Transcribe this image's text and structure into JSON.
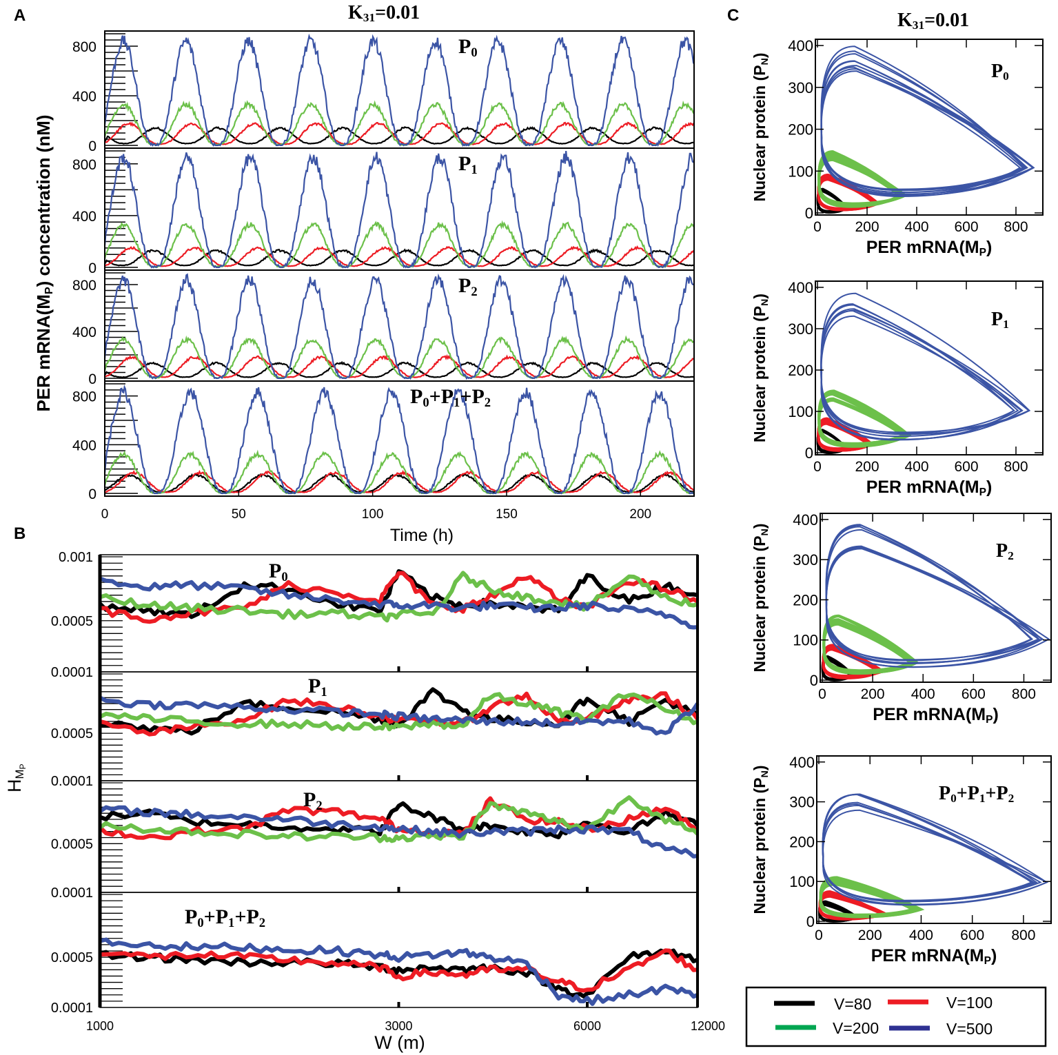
{
  "figure": {
    "panel_labels": [
      "A",
      "B",
      "C"
    ],
    "legend": [
      {
        "label": "V=80",
        "color": "#000000"
      },
      {
        "label": "V=100",
        "color": "#ed1c24"
      },
      {
        "label": "V=200",
        "color": "#00a651"
      },
      {
        "label": "V=500",
        "color": "#2e3192"
      }
    ]
  },
  "colors": {
    "V=80": "#000000",
    "V=100": "#ed1c24",
    "V=200": "#6cc04a",
    "V=500": "#3b54a5"
  },
  "chart_data": [
    {
      "panel": "A",
      "type": "line",
      "title": {
        "base": "K",
        "sub": "31",
        "rest": "=0.01"
      },
      "xlabel": "Time (h)",
      "ylabel": {
        "pre": "PER mRNA(M",
        "sub": "P",
        "post": ") concentration (nM)"
      },
      "xlim": [
        0,
        220
      ],
      "xticks": [
        0,
        50,
        100,
        150,
        200
      ],
      "ylim": [
        -15,
        900
      ],
      "yticks": [
        0,
        400,
        800
      ],
      "subplots": [
        {
          "label": [
            [
              "P",
              "0"
            ]
          ],
          "series": [
            {
              "name": "V=80",
              "period_h": 23.3,
              "first_peak_h": 19,
              "peak": 140,
              "trough": 15
            },
            {
              "name": "V=100",
              "period_h": 23.3,
              "first_peak_h": 9,
              "peak": 175,
              "trough": 10
            },
            {
              "name": "V=200",
              "period_h": 23.3,
              "first_peak_h": 7,
              "peak": 330,
              "trough": 5
            },
            {
              "name": "V=500",
              "period_h": 23.3,
              "first_peak_h": 7,
              "peak": 840,
              "trough": 0
            }
          ]
        },
        {
          "label": [
            [
              "P",
              "1"
            ]
          ],
          "series": [
            {
              "name": "V=80",
              "period_h": 23.6,
              "first_peak_h": 18,
              "peak": 130,
              "trough": 15
            },
            {
              "name": "V=100",
              "period_h": 23.6,
              "first_peak_h": 10,
              "peak": 150,
              "trough": 10
            },
            {
              "name": "V=200",
              "period_h": 23.6,
              "first_peak_h": 7,
              "peak": 330,
              "trough": 5
            },
            {
              "name": "V=500",
              "period_h": 23.6,
              "first_peak_h": 7,
              "peak": 850,
              "trough": 0
            }
          ]
        },
        {
          "label": [
            [
              "P",
              "2"
            ]
          ],
          "series": [
            {
              "name": "V=80",
              "period_h": 23.5,
              "first_peak_h": 18,
              "peak": 130,
              "trough": 10
            },
            {
              "name": "V=100",
              "period_h": 23.5,
              "first_peak_h": 10,
              "peak": 180,
              "trough": 10
            },
            {
              "name": "V=200",
              "period_h": 23.5,
              "first_peak_h": 7,
              "peak": 330,
              "trough": 5
            },
            {
              "name": "V=500",
              "period_h": 23.5,
              "first_peak_h": 7,
              "peak": 840,
              "trough": 0
            }
          ]
        },
        {
          "label": [
            [
              "P",
              "0"
            ],
            [
              "+P",
              "1"
            ],
            [
              "+P",
              "2"
            ]
          ],
          "series": [
            {
              "name": "V=80",
              "period_h": 25,
              "first_peak_h": 9,
              "peak": 150,
              "trough": 10
            },
            {
              "name": "V=100",
              "period_h": 25,
              "first_peak_h": 11,
              "peak": 170,
              "trough": 10
            },
            {
              "name": "V=200",
              "period_h": 25,
              "first_peak_h": 7,
              "peak": 320,
              "trough": 0
            },
            {
              "name": "V=500",
              "period_h": 25,
              "first_peak_h": 7,
              "peak": 830,
              "trough": 0
            }
          ]
        }
      ]
    },
    {
      "panel": "B",
      "type": "line",
      "xlabel": "W (m)",
      "ylabel": {
        "base": "H",
        "sub": "M",
        "subsub": "P"
      },
      "xscale": "log",
      "xlim": [
        1000,
        9000
      ],
      "xticks": [
        1000,
        3000,
        6000,
        12000
      ],
      "ylim": [
        0.0001,
        0.001
      ],
      "ytick_labels": [
        [
          "0.001",
          "0.0005",
          "0.0001"
        ],
        [
          "0.0005",
          "0.0001"
        ],
        [
          "0.0005",
          "0.0001"
        ],
        [
          "0.0005",
          "0.0001"
        ]
      ],
      "ytick_values": [
        [
          0.001,
          0.0005,
          0.0001
        ],
        [
          0.0005,
          0.0001
        ],
        [
          0.0005,
          0.0001
        ],
        [
          0.0005,
          0.0001
        ]
      ],
      "W": [
        1000,
        1200,
        1400,
        1700,
        2000,
        2400,
        2800,
        3000,
        3400,
        3800,
        4200,
        4800,
        5400,
        6000,
        7000,
        8000,
        9000
      ],
      "subplots": [
        {
          "label": [
            [
              "P",
              "0"
            ]
          ],
          "series": [
            {
              "name": "V=80",
              "H": [
                0.00062,
                0.00058,
                0.00054,
                0.00078,
                0.00075,
                0.00063,
                0.00058,
                0.00088,
                0.00068,
                0.00062,
                0.00064,
                0.0006,
                0.00058,
                0.00085,
                0.00065,
                0.00078,
                0.0007
              ]
            },
            {
              "name": "V=100",
              "H": [
                0.00058,
                0.00052,
                0.00056,
                0.0006,
                0.00078,
                0.00072,
                0.00066,
                0.00088,
                0.00062,
                0.0006,
                0.00068,
                0.00086,
                0.00066,
                0.0006,
                0.00082,
                0.00075,
                0.00065
              ]
            },
            {
              "name": "V=200",
              "H": [
                0.00068,
                0.00062,
                0.0006,
                0.00058,
                0.00055,
                0.00056,
                0.00052,
                0.00055,
                0.00055,
                0.00085,
                0.00075,
                0.00068,
                0.00065,
                0.0006,
                0.00085,
                0.00068,
                0.00063
              ]
            },
            {
              "name": "V=500",
              "H": [
                0.00082,
                0.00076,
                0.00078,
                0.00075,
                0.0007,
                0.00066,
                0.00063,
                0.00062,
                0.00062,
                0.0006,
                0.00062,
                0.0006,
                0.0006,
                0.00062,
                0.00058,
                0.00055,
                0.00045
              ]
            }
          ]
        },
        {
          "label": [
            [
              "P",
              "1"
            ]
          ],
          "series": [
            {
              "name": "V=80",
              "H": [
                0.0006,
                0.00054,
                0.00052,
                0.00075,
                0.00072,
                0.00068,
                0.00062,
                0.00058,
                0.00085,
                0.0007,
                0.00062,
                0.0006,
                0.00058,
                0.0008,
                0.0006,
                0.00078,
                0.00065
              ]
            },
            {
              "name": "V=100",
              "H": [
                0.00058,
                0.0005,
                0.00055,
                0.00062,
                0.00078,
                0.00072,
                0.00065,
                0.0006,
                0.0006,
                0.00058,
                0.00072,
                0.00082,
                0.0006,
                0.00062,
                0.00078,
                0.00082,
                0.00062
              ]
            },
            {
              "name": "V=200",
              "H": [
                0.00066,
                0.00062,
                0.0006,
                0.00058,
                0.00058,
                0.00056,
                0.00055,
                0.00055,
                0.00058,
                0.00056,
                0.00082,
                0.00075,
                0.00068,
                0.00062,
                0.00085,
                0.0007,
                0.0006
              ]
            },
            {
              "name": "V=500",
              "H": [
                0.00078,
                0.00074,
                0.00074,
                0.00072,
                0.0007,
                0.00068,
                0.00066,
                0.00064,
                0.00062,
                0.00061,
                0.0006,
                0.0006,
                0.00058,
                0.0006,
                0.0006,
                0.0005,
                0.00075
              ]
            }
          ]
        },
        {
          "label": [
            [
              "P",
              "2"
            ]
          ],
          "series": [
            {
              "name": "V=80",
              "H": [
                0.00072,
                0.00075,
                0.00068,
                0.00066,
                0.00064,
                0.00062,
                0.0006,
                0.00082,
                0.00072,
                0.00062,
                0.00065,
                0.0006,
                0.00058,
                0.00068,
                0.0006,
                0.00075,
                0.00065
              ]
            },
            {
              "name": "V=100",
              "H": [
                0.00062,
                0.00055,
                0.0006,
                0.00062,
                0.00078,
                0.00076,
                0.0007,
                0.00062,
                0.0006,
                0.00058,
                0.00085,
                0.0007,
                0.00068,
                0.00062,
                0.0007,
                0.0008,
                0.0006
              ]
            },
            {
              "name": "V=200",
              "H": [
                0.00066,
                0.00062,
                0.0006,
                0.00058,
                0.00056,
                0.00056,
                0.00055,
                0.00055,
                0.00056,
                0.00056,
                0.00082,
                0.00075,
                0.00068,
                0.00062,
                0.00088,
                0.0007,
                0.00058
              ]
            },
            {
              "name": "V=500",
              "H": [
                0.00078,
                0.00076,
                0.00074,
                0.00072,
                0.0007,
                0.00066,
                0.00064,
                0.00062,
                0.0006,
                0.00058,
                0.0006,
                0.0006,
                0.00062,
                0.00062,
                0.0006,
                0.00045,
                0.0004
              ]
            }
          ]
        },
        {
          "label": [
            [
              "P",
              "0"
            ],
            [
              "+P",
              "1"
            ],
            [
              "+P",
              "2"
            ]
          ],
          "series": [
            {
              "name": "V=80",
              "H": [
                0.00052,
                0.0005,
                0.00048,
                0.00046,
                0.00046,
                0.00045,
                0.00042,
                0.0004,
                0.00042,
                0.0004,
                0.00042,
                0.00038,
                0.00025,
                0.0002,
                0.0005,
                0.00055,
                0.00048
              ]
            },
            {
              "name": "V=100",
              "H": [
                0.00055,
                0.0005,
                0.00052,
                0.0005,
                0.00048,
                0.00045,
                0.00042,
                0.00035,
                0.00038,
                0.00036,
                0.0004,
                0.0004,
                0.0003,
                0.00025,
                0.0004,
                0.00055,
                0.0004
              ]
            },
            {
              "name": "V=500",
              "H": [
                0.00062,
                0.0006,
                0.00058,
                0.00058,
                0.00056,
                0.00055,
                0.00052,
                0.0005,
                0.00052,
                0.00054,
                0.0005,
                0.00045,
                0.0002,
                0.00015,
                0.0002,
                0.00025,
                0.0002
              ]
            }
          ]
        }
      ]
    },
    {
      "panel": "C",
      "type": "line",
      "title": {
        "base": "K",
        "sub": "31",
        "rest": "=0.01"
      },
      "xlabel": {
        "pre": "PER mRNA(M",
        "sub": "P",
        "post": ")"
      },
      "ylabel": {
        "pre": "Nuclear protein (P",
        "sub": "N",
        "post": ")"
      },
      "xlim": [
        0,
        900
      ],
      "xticks": [
        0,
        200,
        400,
        600,
        800
      ],
      "ylim": [
        0,
        410
      ],
      "yticks": [
        0,
        100,
        200,
        300,
        400
      ],
      "subplots": [
        {
          "label": [
            [
              "P",
              "0"
            ]
          ],
          "series": [
            {
              "name": "V=80",
              "mrna_range": [
                0,
                120
              ],
              "protein_range": [
                0,
                60
              ],
              "loops": 4
            },
            {
              "name": "V=100",
              "mrna_range": [
                0,
                250
              ],
              "protein_range": [
                5,
                95
              ],
              "loops": 8
            },
            {
              "name": "V=200",
              "mrna_range": [
                0,
                360
              ],
              "protein_range": [
                15,
                150
              ],
              "loops": 10
            },
            {
              "name": "V=500",
              "mrna_range": [
                0,
                880
              ],
              "protein_range": [
                35,
                400
              ],
              "loops": 9
            }
          ]
        },
        {
          "label": [
            [
              "P",
              "1"
            ]
          ],
          "series": [
            {
              "name": "V=80",
              "mrna_range": [
                0,
                120
              ],
              "protein_range": [
                0,
                55
              ],
              "loops": 4
            },
            {
              "name": "V=100",
              "mrna_range": [
                0,
                220
              ],
              "protein_range": [
                5,
                85
              ],
              "loops": 8
            },
            {
              "name": "V=200",
              "mrna_range": [
                0,
                370
              ],
              "protein_range": [
                15,
                150
              ],
              "loops": 10
            },
            {
              "name": "V=500",
              "mrna_range": [
                0,
                860
              ],
              "protein_range": [
                30,
                390
              ],
              "loops": 7
            }
          ]
        },
        {
          "label": [
            [
              "P",
              "2"
            ]
          ],
          "series": [
            {
              "name": "V=80",
              "mrna_range": [
                0,
                120
              ],
              "protein_range": [
                0,
                60
              ],
              "loops": 4
            },
            {
              "name": "V=100",
              "mrna_range": [
                0,
                240
              ],
              "protein_range": [
                5,
                90
              ],
              "loops": 8
            },
            {
              "name": "V=200",
              "mrna_range": [
                0,
                380
              ],
              "protein_range": [
                15,
                160
              ],
              "loops": 10
            },
            {
              "name": "V=500",
              "mrna_range": [
                0,
                900
              ],
              "protein_range": [
                30,
                390
              ],
              "loops": 8
            }
          ]
        },
        {
          "label": [
            [
              "P",
              "0"
            ],
            [
              "+P",
              "1"
            ],
            [
              "+P",
              "2"
            ]
          ],
          "series": [
            {
              "name": "V=80",
              "mrna_range": [
                0,
                150
              ],
              "protein_range": [
                0,
                50
              ],
              "loops": 4
            },
            {
              "name": "V=100",
              "mrna_range": [
                0,
                260
              ],
              "protein_range": [
                5,
                75
              ],
              "loops": 8
            },
            {
              "name": "V=200",
              "mrna_range": [
                0,
                400
              ],
              "protein_range": [
                10,
                110
              ],
              "loops": 8
            },
            {
              "name": "V=500",
              "mrna_range": [
                0,
                900
              ],
              "protein_range": [
                40,
                330
              ],
              "loops": 7
            }
          ]
        }
      ]
    }
  ]
}
